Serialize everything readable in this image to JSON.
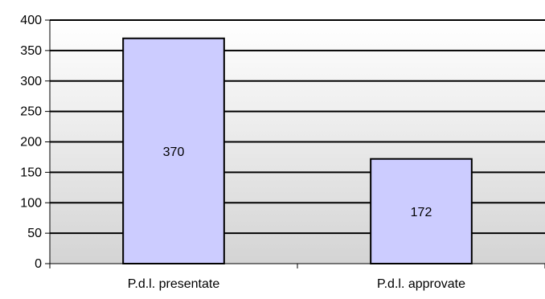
{
  "chart_data": {
    "type": "bar",
    "title": "",
    "xlabel": "",
    "ylabel": "",
    "categories": [
      "P.d.l. presentate",
      "P.d.l. approvate"
    ],
    "values": [
      370,
      172
    ],
    "data_labels": [
      "370",
      "172"
    ],
    "ylim": [
      0,
      400
    ],
    "y_ticks": [
      0,
      50,
      100,
      150,
      200,
      250,
      300,
      350,
      400
    ],
    "y_tick_labels": [
      "0",
      "50",
      "100",
      "150",
      "200",
      "250",
      "300",
      "350",
      "400"
    ],
    "grid": true,
    "legend": "none",
    "colors": {
      "bar_fill": "#ccccff",
      "bar_stroke": "#000000",
      "plot_bg_top": "#ffffff",
      "plot_bg_bottom": "#d4d4d4",
      "grid": "#000000",
      "axis": "#000000"
    }
  }
}
